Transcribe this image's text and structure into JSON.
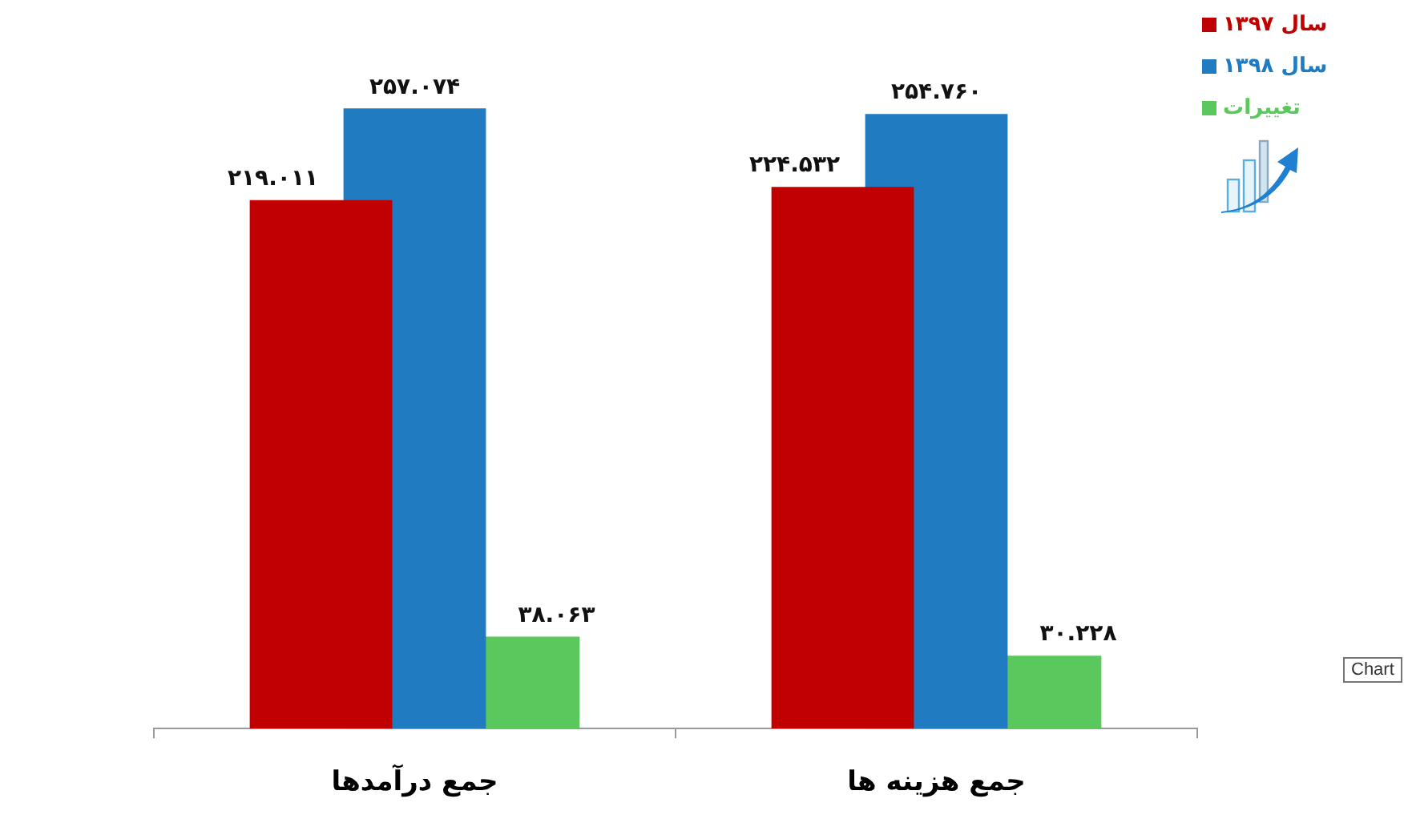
{
  "chart_data": {
    "type": "bar",
    "categories": [
      "جمع درآمدها",
      "جمع هزینه ها"
    ],
    "series": [
      {
        "name": "سال ۱۳۹۷",
        "color": "#c00000",
        "values": [
          219.011,
          224.532
        ],
        "value_labels": [
          "۲۱۹.۰۱۱",
          "۲۲۴.۵۳۲"
        ]
      },
      {
        "name": "سال ۱۳۹۸",
        "color": "#217bc0",
        "values": [
          257.074,
          254.76
        ],
        "value_labels": [
          "۲۵۷.۰۷۴",
          "۲۵۴.۷۶۰"
        ]
      },
      {
        "name": "تغییرات",
        "color": "#5ac85c",
        "values": [
          38.063,
          30.228
        ],
        "value_labels": [
          "۳۸.۰۶۳",
          "۳۰.۲۲۸"
        ]
      }
    ],
    "legend": "top right",
    "annotations": [
      "Chart"
    ]
  }
}
